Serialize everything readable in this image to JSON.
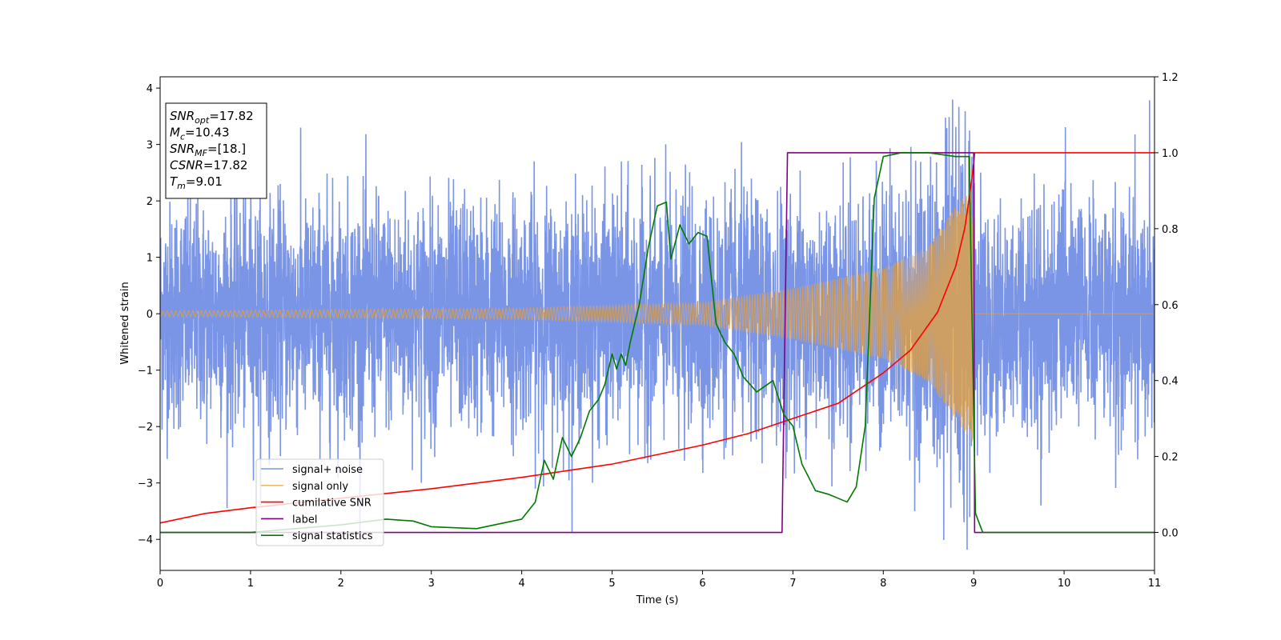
{
  "chart_data": {
    "type": "line",
    "xlabel": "Time (s)",
    "ylabel": "Whitened strain",
    "xlim": [
      0,
      11
    ],
    "ylim_left": [
      -4.55,
      4.2
    ],
    "ylim_right": [
      -0.1,
      1.2
    ],
    "x_ticks": [
      0,
      1,
      2,
      3,
      4,
      5,
      6,
      7,
      8,
      9,
      10,
      11
    ],
    "y_left_ticks": [
      -4,
      -3,
      -2,
      -1,
      0,
      1,
      2,
      3,
      4
    ],
    "y_right_ticks": [
      0.0,
      0.2,
      0.4,
      0.6,
      0.8,
      1.0,
      1.2
    ],
    "y_left_tick_labels": [
      "−4",
      "−3",
      "−2",
      "−1",
      "0",
      "1",
      "2",
      "3",
      "4"
    ],
    "y_right_tick_labels": [
      "0.0",
      "0.2",
      "0.4",
      "0.6",
      "0.8",
      "1.0",
      "1.2"
    ],
    "legend_placement": "lower-left",
    "info_box": {
      "lines": [
        {
          "sym": "SNR",
          "sub": "opt",
          "value": "=17.82"
        },
        {
          "sym": "M",
          "sub": "c",
          "value": "=10.43"
        },
        {
          "sym": "SNR",
          "sub": "MF",
          "value": "=[18.]"
        },
        {
          "sym": "CSNR",
          "sub": "",
          "value": "=17.82"
        },
        {
          "sym": "T",
          "sub": "m",
          "value": "=9.01"
        }
      ]
    },
    "series": [
      {
        "name": "signal+ noise",
        "axis": "left",
        "color": "#5a7ae0",
        "kind": "noise",
        "noise_sigma": 1.0,
        "x_range": [
          0,
          11
        ],
        "approx_range": [
          -4.2,
          3.8
        ]
      },
      {
        "name": "signal only",
        "axis": "left",
        "color": "#e8a33a",
        "kind": "chirp",
        "merger_time": 9.01,
        "envelope": [
          [
            0,
            0.05
          ],
          [
            4,
            0.1
          ],
          [
            6,
            0.2
          ],
          [
            7,
            0.45
          ],
          [
            8,
            0.8
          ],
          [
            8.5,
            1.2
          ],
          [
            8.8,
            1.9
          ],
          [
            9.0,
            2.3
          ],
          [
            9.01,
            0
          ]
        ]
      },
      {
        "name": "cumilative SNR",
        "axis": "right",
        "color": "#ff0000",
        "x": [
          0,
          0.5,
          1,
          2,
          3,
          4,
          5,
          6,
          6.5,
          7,
          7.5,
          8,
          8.3,
          8.6,
          8.8,
          8.9,
          8.95,
          9.0,
          9.01,
          11
        ],
        "y": [
          0.025,
          0.05,
          0.065,
          0.09,
          0.115,
          0.145,
          0.18,
          0.23,
          0.26,
          0.3,
          0.34,
          0.42,
          0.48,
          0.58,
          0.7,
          0.8,
          0.88,
          0.97,
          1.0,
          1.0
        ]
      },
      {
        "name": "label",
        "axis": "right",
        "color": "#800080",
        "x": [
          0,
          6.88,
          6.94,
          9.0,
          9.01,
          11
        ],
        "y": [
          0.0,
          0.0,
          1.0,
          1.0,
          0.0,
          0.0
        ]
      },
      {
        "name": "signal statistics",
        "axis": "right",
        "color": "#007a00",
        "x": [
          0,
          1,
          2,
          2.5,
          2.8,
          3.0,
          3.5,
          3.8,
          4.0,
          4.15,
          4.25,
          4.35,
          4.45,
          4.55,
          4.65,
          4.75,
          4.85,
          4.92,
          5.0,
          5.05,
          5.1,
          5.15,
          5.2,
          5.3,
          5.4,
          5.5,
          5.6,
          5.65,
          5.75,
          5.85,
          5.95,
          6.05,
          6.15,
          6.25,
          6.35,
          6.45,
          6.6,
          6.78,
          6.9,
          7.0,
          7.1,
          7.25,
          7.4,
          7.5,
          7.6,
          7.7,
          7.8,
          7.9,
          8.0,
          8.2,
          8.5,
          8.8,
          8.95,
          9.02,
          9.1,
          11
        ],
        "y": [
          0.0,
          0.0,
          0.02,
          0.035,
          0.03,
          0.015,
          0.01,
          0.025,
          0.035,
          0.08,
          0.19,
          0.14,
          0.25,
          0.2,
          0.25,
          0.32,
          0.35,
          0.39,
          0.47,
          0.43,
          0.47,
          0.44,
          0.5,
          0.6,
          0.75,
          0.86,
          0.87,
          0.72,
          0.81,
          0.76,
          0.79,
          0.78,
          0.55,
          0.5,
          0.47,
          0.41,
          0.37,
          0.4,
          0.31,
          0.28,
          0.18,
          0.11,
          0.1,
          0.09,
          0.08,
          0.12,
          0.28,
          0.88,
          0.99,
          1.0,
          1.0,
          0.99,
          0.99,
          0.05,
          0.0,
          0.0
        ]
      }
    ]
  }
}
